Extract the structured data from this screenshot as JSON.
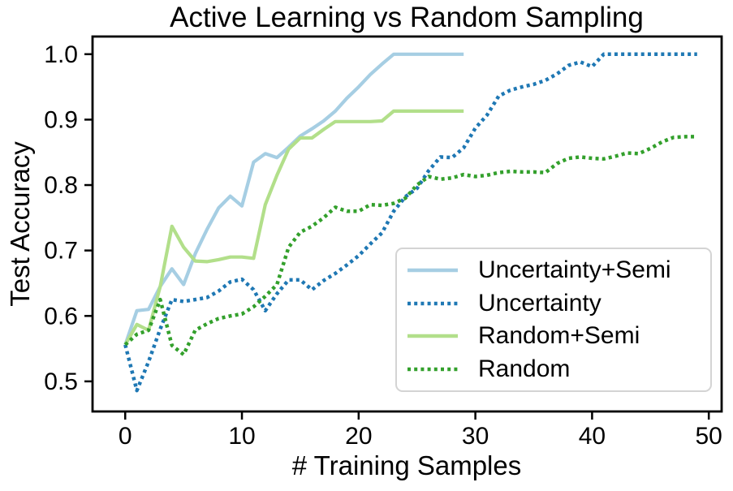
{
  "chart_data": {
    "type": "line",
    "title": "Active Learning vs Random Sampling",
    "xlabel": "# Training Samples",
    "ylabel": "Test Accuracy",
    "xlim": [
      -2.8,
      51.1
    ],
    "ylim": [
      0.454,
      1.027
    ],
    "grid": false,
    "legend_position": "lower right",
    "xticks": {
      "values": [
        0,
        10,
        20,
        30,
        40,
        50
      ],
      "labels": [
        "0",
        "10",
        "20",
        "30",
        "40",
        "50"
      ]
    },
    "yticks": {
      "values": [
        0.5,
        0.6,
        0.7,
        0.8,
        0.9,
        1.0
      ],
      "labels": [
        "0.5",
        "0.6",
        "0.7",
        "0.8",
        "0.9",
        "1.0"
      ]
    },
    "x_is_index": true,
    "series": [
      {
        "id": "uncertainty-semi",
        "name": "Uncertainty+Semi",
        "color": "#a6cee3",
        "style": "solid",
        "values": [
          0.556,
          0.608,
          0.61,
          0.645,
          0.672,
          0.648,
          0.695,
          0.732,
          0.765,
          0.783,
          0.768,
          0.835,
          0.848,
          0.842,
          0.858,
          0.875,
          0.886,
          0.898,
          0.913,
          0.933,
          0.95,
          0.969,
          0.985,
          1.0,
          1.0,
          1.0,
          1.0,
          1.0,
          1.0,
          1.0
        ]
      },
      {
        "id": "uncertainty",
        "name": "Uncertainty",
        "color": "#1f78b4",
        "style": "dotted",
        "values": [
          0.556,
          0.486,
          0.53,
          0.58,
          0.625,
          0.622,
          0.625,
          0.628,
          0.638,
          0.652,
          0.656,
          0.64,
          0.608,
          0.634,
          0.655,
          0.655,
          0.64,
          0.654,
          0.665,
          0.678,
          0.692,
          0.71,
          0.727,
          0.76,
          0.782,
          0.795,
          0.822,
          0.843,
          0.842,
          0.857,
          0.887,
          0.907,
          0.936,
          0.945,
          0.95,
          0.954,
          0.96,
          0.97,
          0.983,
          0.988,
          0.981,
          1.0,
          1.0,
          1.0,
          1.0,
          1.0,
          1.0,
          1.0,
          1.0,
          1.0
        ]
      },
      {
        "id": "random-semi",
        "name": "Random+Semi",
        "color": "#b2df8a",
        "style": "solid",
        "values": [
          0.556,
          0.587,
          0.578,
          0.645,
          0.737,
          0.705,
          0.684,
          0.683,
          0.686,
          0.69,
          0.69,
          0.688,
          0.77,
          0.815,
          0.855,
          0.872,
          0.872,
          0.885,
          0.897,
          0.897,
          0.897,
          0.897,
          0.898,
          0.913,
          0.913,
          0.913,
          0.913,
          0.913,
          0.913,
          0.913
        ]
      },
      {
        "id": "random",
        "name": "Random",
        "color": "#33a02c",
        "style": "dotted",
        "values": [
          0.556,
          0.572,
          0.578,
          0.625,
          0.555,
          0.541,
          0.578,
          0.588,
          0.596,
          0.6,
          0.603,
          0.614,
          0.63,
          0.648,
          0.705,
          0.728,
          0.737,
          0.75,
          0.766,
          0.76,
          0.76,
          0.77,
          0.769,
          0.772,
          0.78,
          0.8,
          0.813,
          0.809,
          0.811,
          0.816,
          0.813,
          0.815,
          0.819,
          0.821,
          0.82,
          0.82,
          0.819,
          0.833,
          0.841,
          0.843,
          0.841,
          0.84,
          0.844,
          0.849,
          0.848,
          0.856,
          0.866,
          0.873,
          0.874,
          0.874
        ]
      }
    ]
  }
}
